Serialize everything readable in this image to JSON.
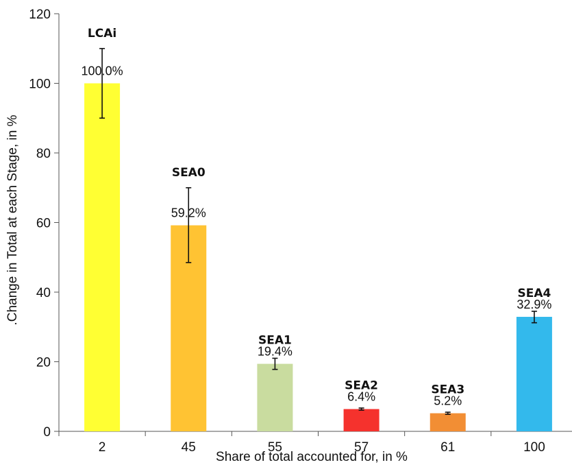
{
  "chart_data": {
    "type": "bar",
    "title": "",
    "xlabel": "Share of total accounted for, in %",
    "ylabel": ".Change in Total at each Stage, in %",
    "ylim": [
      0,
      120
    ],
    "yticks": [
      0,
      20,
      40,
      60,
      80,
      100,
      120
    ],
    "grid": false,
    "legend": "none",
    "categories": [
      "2",
      "45",
      "55",
      "57",
      "61",
      "100"
    ],
    "series": [
      {
        "values": [
          100.0,
          59.2,
          19.4,
          6.4,
          5.2,
          32.9
        ],
        "value_labels": [
          "100.0%",
          "59.2%",
          "19.4%",
          "6.4%",
          "5.2%",
          "32.9%"
        ],
        "stage_labels": [
          "LCAi",
          "SEA0",
          "SEA1",
          "SEA2",
          "SEA3",
          "SEA4"
        ],
        "colors": [
          "#ffff33",
          "#ffc333",
          "#c9dc9f",
          "#f5322d",
          "#f28e34",
          "#33b9ec"
        ],
        "error_low": [
          90.0,
          48.5,
          17.8,
          6.1,
          4.9,
          31.2
        ],
        "error_high": [
          110.0,
          70.0,
          21.0,
          6.7,
          5.5,
          34.5
        ]
      }
    ]
  }
}
